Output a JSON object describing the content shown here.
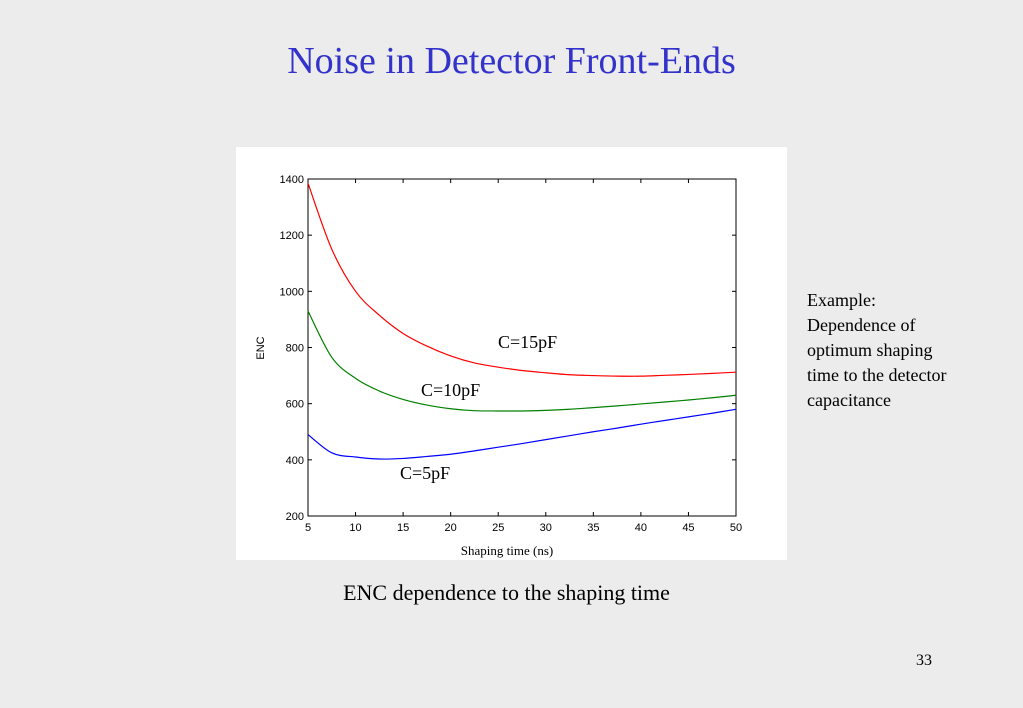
{
  "slide": {
    "title": "Noise in Detector Front-Ends",
    "caption": "ENC dependence to the shaping time",
    "side_note": [
      "Example:",
      "Dependence of",
      "optimum shaping",
      "time to the detector",
      "capacitance"
    ],
    "page_number": "33"
  },
  "chart_data": {
    "type": "line",
    "xlabel": "Shaping time (ns)",
    "ylabel": "ENC",
    "xlim": [
      5,
      50
    ],
    "ylim": [
      200,
      1400
    ],
    "xticks": [
      5,
      10,
      15,
      20,
      25,
      30,
      35,
      40,
      45,
      50
    ],
    "yticks": [
      200,
      400,
      600,
      800,
      1000,
      1200,
      1400
    ],
    "grid": false,
    "x": [
      5,
      7.5,
      10,
      12.5,
      15,
      17.5,
      20,
      22.5,
      25,
      27.5,
      30,
      32.5,
      35,
      37.5,
      40,
      42.5,
      45,
      47.5,
      50
    ],
    "series": [
      {
        "name": "C=15pF",
        "color": "#ff0000",
        "values": [
          1385,
          1150,
          1000,
          915,
          850,
          805,
          770,
          745,
          730,
          718,
          710,
          703,
          700,
          698,
          698,
          701,
          704,
          708,
          712
        ]
      },
      {
        "name": "C=10pF",
        "color": "#008000",
        "values": [
          930,
          765,
          690,
          645,
          615,
          595,
          582,
          575,
          574,
          574,
          576,
          580,
          586,
          592,
          599,
          606,
          613,
          621,
          630
        ]
      },
      {
        "name": "C=5pF",
        "color": "#0000ff",
        "values": [
          490,
          425,
          410,
          403,
          405,
          412,
          420,
          432,
          445,
          458,
          472,
          486,
          500,
          513,
          527,
          540,
          553,
          566,
          580
        ]
      }
    ]
  }
}
